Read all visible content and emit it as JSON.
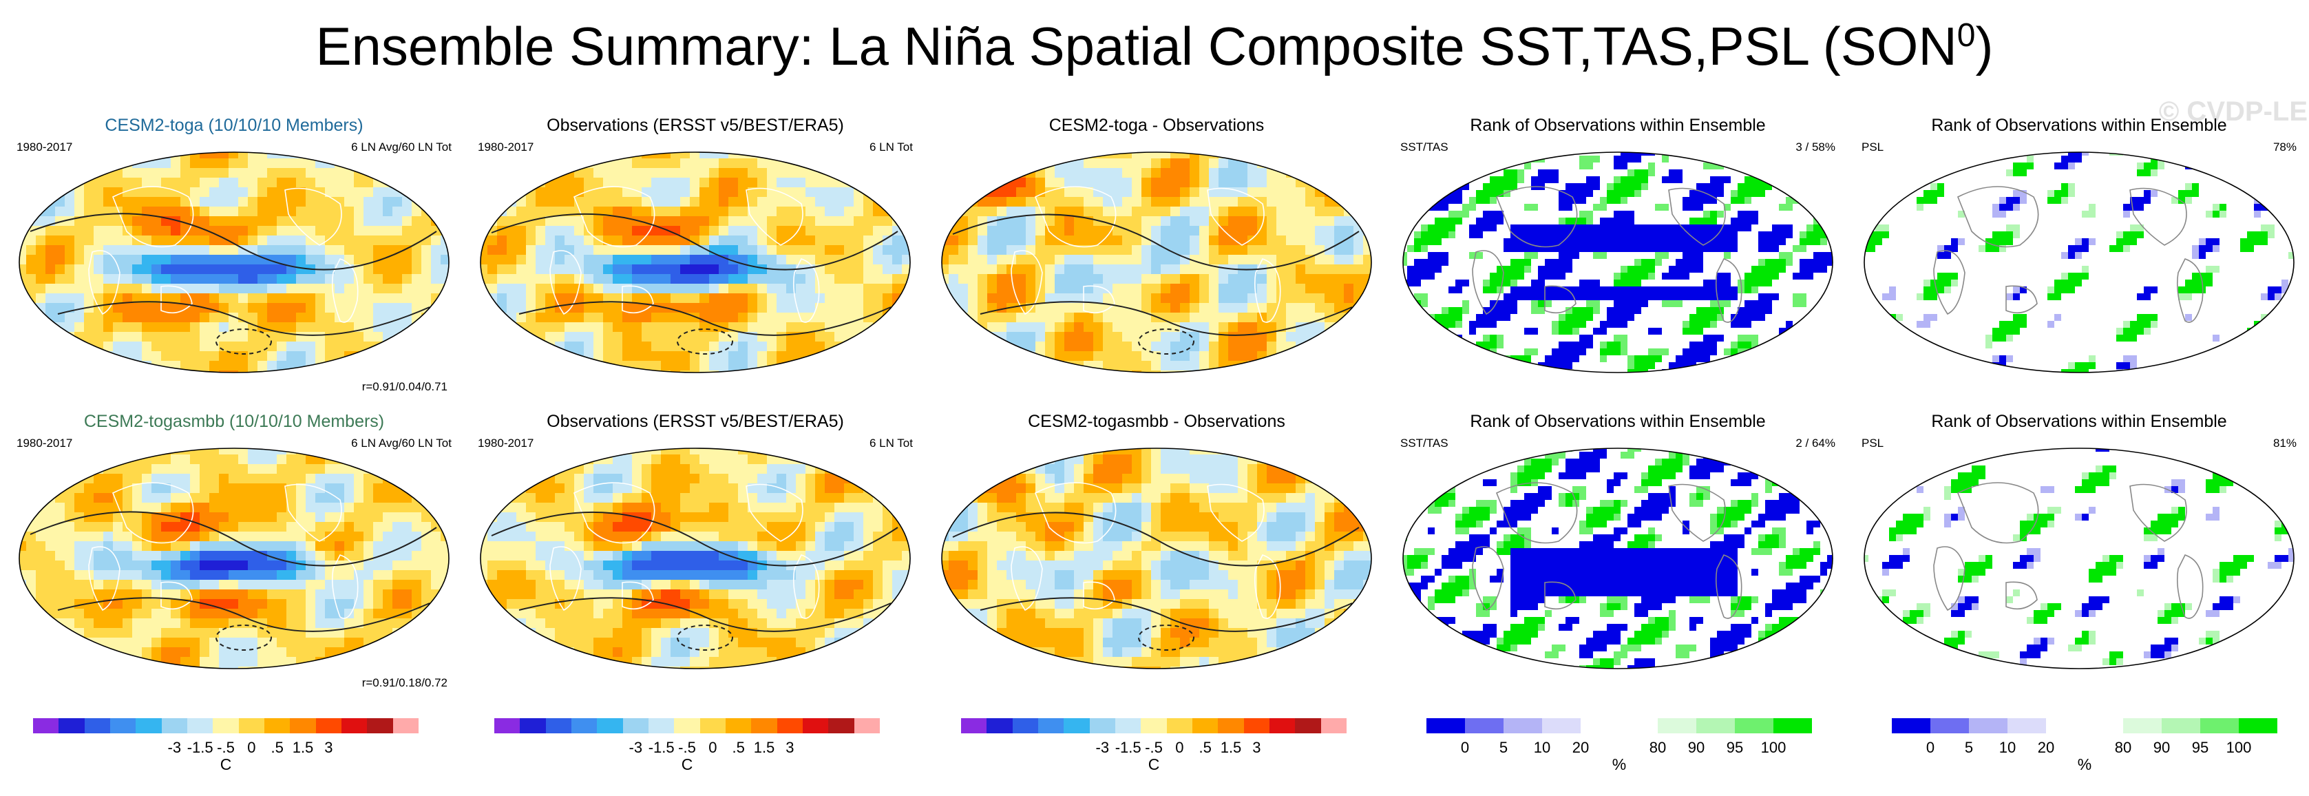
{
  "title_main": "Ensemble Summary: La Niña Spatial Composite SST,TAS,PSL (SON",
  "title_sup": "0",
  "title_close": ")",
  "watermark": "© CVDP-LE",
  "colors": {
    "diverging": [
      "#8a2be2",
      "#1f1fd6",
      "#2f5fe8",
      "#3f8ff0",
      "#35b5f0",
      "#9dd4f2",
      "#c9e8f7",
      "#fff6a8",
      "#ffd94a",
      "#ffb000",
      "#ff8800",
      "#ff4a00",
      "#e01010",
      "#b01818",
      "#ffaaaa"
    ],
    "rank": [
      "#0000e6",
      "#6e6ef2",
      "#b4b4f6",
      "#dcdcfa",
      "#ffffff",
      "#ffffff",
      "#dcfadc",
      "#b4f6b4",
      "#6ef06e",
      "#00e600"
    ],
    "ocean_fill": "#c9e8f7",
    "map_bg": "#ffffff"
  },
  "panels": [
    {
      "id": "p11",
      "kind": "comp",
      "title": "CESM2-toga (10/10/10 Members)",
      "title_color": "c1",
      "left_label": "1980-2017",
      "right_label": "6 LN Avg/60 LN Tot",
      "bottom_label": "r=0.91/0.04/0.71"
    },
    {
      "id": "p12",
      "kind": "comp",
      "title": "Observations (ERSST v5/BEST/ERA5)",
      "title_color": "",
      "left_label": "1980-2017",
      "right_label": "6 LN Tot",
      "bottom_label": ""
    },
    {
      "id": "p13",
      "kind": "diff",
      "title": "CESM2-toga - Observations",
      "title_color": "",
      "left_label": "",
      "right_label": "",
      "bottom_label": ""
    },
    {
      "id": "p14",
      "kind": "rank_sst",
      "title": "Rank of Observations within Ensemble",
      "title_color": "",
      "left_label": "SST/TAS",
      "right_label": "3 /  58%",
      "bottom_label": ""
    },
    {
      "id": "p15",
      "kind": "rank_psl",
      "title": "Rank of Observations within Ensemble",
      "title_color": "",
      "left_label": "PSL",
      "right_label": "78%",
      "bottom_label": ""
    },
    {
      "id": "p21",
      "kind": "comp",
      "title": "CESM2-togasmbb (10/10/10 Members)",
      "title_color": "c2",
      "left_label": "1980-2017",
      "right_label": "6 LN Avg/60 LN Tot",
      "bottom_label": "r=0.91/0.18/0.72"
    },
    {
      "id": "p22",
      "kind": "comp",
      "title": "Observations (ERSST v5/BEST/ERA5)",
      "title_color": "",
      "left_label": "1980-2017",
      "right_label": "6 LN Tot",
      "bottom_label": ""
    },
    {
      "id": "p23",
      "kind": "diff",
      "title": "CESM2-togasmbb - Observations",
      "title_color": "",
      "left_label": "",
      "right_label": "",
      "bottom_label": ""
    },
    {
      "id": "p24",
      "kind": "rank_sst",
      "title": "Rank of Observations within Ensemble",
      "title_color": "",
      "left_label": "SST/TAS",
      "right_label": "2 /  64%",
      "bottom_label": ""
    },
    {
      "id": "p25",
      "kind": "rank_psl",
      "title": "Rank of Observations within Ensemble",
      "title_color": "",
      "left_label": "PSL",
      "right_label": "81%",
      "bottom_label": ""
    }
  ],
  "chart_data": {
    "type": "heatmap",
    "title": "Ensemble Summary: La Niña Spatial Composite SST,TAS,PSL (SON0)",
    "colorbar_temperature": {
      "ticks": [
        "-3",
        "-1.5",
        "-.5",
        "0",
        ".5",
        "1.5",
        "3"
      ],
      "unit": "C",
      "n_colors": 15
    },
    "colorbar_rank": {
      "ticks": [
        "0",
        "5",
        "10",
        "20",
        "80",
        "90",
        "95",
        "100"
      ],
      "unit": "%",
      "n_colors": 10
    },
    "rows": [
      {
        "model": "CESM2-toga",
        "pattern_correlation": "r=0.91/0.04/0.71",
        "obs_rank_sst_tas": "3 /  58%",
        "obs_rank_psl": "78%"
      },
      {
        "model": "CESM2-togasmbb",
        "pattern_correlation": "r=0.91/0.18/0.72",
        "obs_rank_sst_tas": "2 /  64%",
        "obs_rank_psl": "81%"
      }
    ]
  }
}
